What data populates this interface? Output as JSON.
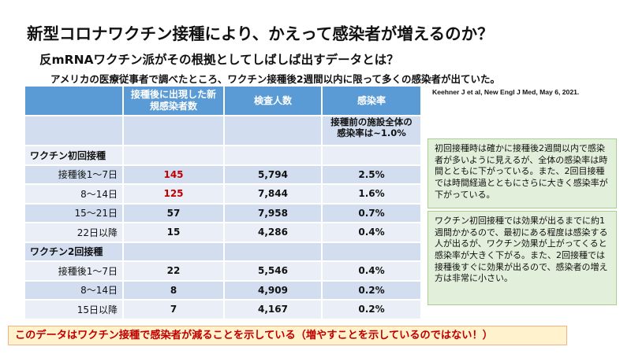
{
  "title": "新型コロナワクチン接種により、かえって感染者が増えるのか？",
  "subtitle": "反mRNAワクチン派がその根拠としてしばしば出すデータとは？",
  "intro": "アメリカの医療従事者で調べたところ、ワクチン接種後2週間以内に限って多くの感染者が出ていた。",
  "citation": "Keehner J et al, New Engl J Med, May 6, 2021.",
  "table": {
    "headers": [
      "",
      "接種後に出現した新規感染者数",
      "検査人数",
      "感染率"
    ],
    "baseline_note": "接種前の施設全体の感染率は~1.0%",
    "group1": "ワクチン初回接種",
    "group2": "ワクチン2回接種",
    "rows1": [
      {
        "period": "接種後1～7日",
        "cases": "145",
        "tested": "5,794",
        "rate": "2.5%"
      },
      {
        "period": "8～14日",
        "cases": "125",
        "tested": "7,844",
        "rate": "1.6%"
      },
      {
        "period": "15～21日",
        "cases": "57",
        "tested": "7,958",
        "rate": "0.7%"
      },
      {
        "period": "22日以降",
        "cases": "15",
        "tested": "4,286",
        "rate": "0.4%"
      }
    ],
    "rows2": [
      {
        "period": "接種後1～7日",
        "cases": "22",
        "tested": "5,546",
        "rate": "0.4%"
      },
      {
        "period": "8～14日",
        "cases": "8",
        "tested": "4,909",
        "rate": "0.2%"
      },
      {
        "period": "15日以降",
        "cases": "7",
        "tested": "4,167",
        "rate": "0.2%"
      }
    ]
  },
  "notes": {
    "box1": "初回接種時は確かに接種後2週間以内で感染者が多いように見えるが、全体の感染率は時間とともに下がっている。また、2回目接種では時間経過とともにさらに大きく感染率が下がっている。",
    "box2": "ワクチン初回接種では効果が出るまでに約1週間かかるので、最初にある程度は感染する人が出るが、ワクチン効果が上がってくると感染率が大きく下がる。また、2回接種では接種後すぐに効果が出るので、感染者の増え方は非常に小さい。"
  },
  "conclusion": "このデータはワクチン接種で感染者が減ることを示している（増やすことを示しているのではない！）",
  "colors": {
    "header_bg": "#5b9bd5",
    "row_dark": "#d2deef",
    "row_light": "#eaeff7",
    "highlight_red": "#c00000",
    "note_bg": "#e2efda",
    "conclusion_bg": "#fff2cc"
  }
}
